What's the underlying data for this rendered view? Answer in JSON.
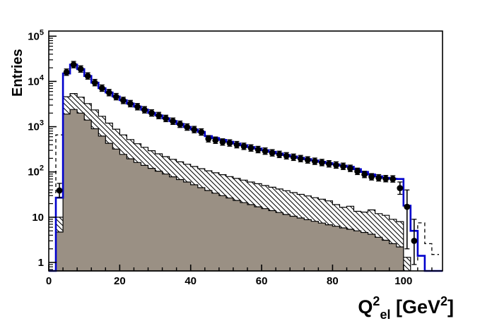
{
  "figure": {
    "background": "#ffffff"
  },
  "colors": {
    "total_line": "#0000cc",
    "marker": "#000000",
    "gray_fill": "#9a9084",
    "outline": "#000000",
    "frame": "#000000"
  },
  "chart_data": {
    "type": "bar",
    "subtype": "log-histogram-with-points",
    "title": "",
    "xlabel": "Q^2_el [GeV^2]",
    "ylabel": "Entries",
    "xlabel_parts": [
      {
        "t": "Q",
        "style": "base"
      },
      {
        "t": "2",
        "style": "sup"
      },
      {
        "t": "el",
        "style": "sub"
      },
      {
        "t": " [GeV",
        "style": "base"
      },
      {
        "t": "2",
        "style": "sup"
      },
      {
        "t": "]",
        "style": "base"
      }
    ],
    "xlim": [
      0,
      111
    ],
    "ylim": [
      0.65,
      130000
    ],
    "yscale": "log",
    "grid": false,
    "legend": "none",
    "bin_width": 2,
    "x_major_ticks": [
      0,
      20,
      40,
      60,
      80,
      100
    ],
    "x_major_tick_labels": [
      "0",
      "20",
      "40",
      "60",
      "80",
      "100"
    ],
    "x_minor_step": 4,
    "y_decade_ticks": [
      1,
      10,
      100,
      1000,
      10000,
      100000
    ],
    "series": [
      {
        "name": "dashed-histogram",
        "type": "step-line-dashed",
        "color": "#000000",
        "segments": [
          {
            "bins": [
              [
                0,
                35
              ],
              [
                2,
                660
              ],
              [
                4,
                47
              ]
            ],
            "end": 4.6
          },
          {
            "rise_from": 1.1,
            "bins": [
              [
                104,
                7.5
              ],
              [
                106,
                2.6
              ],
              [
                108,
                1.5
              ]
            ],
            "end": 110
          }
        ]
      },
      {
        "name": "hatched-histogram",
        "type": "step-fill",
        "fill": "hatch-diagonal",
        "color": "#000000",
        "end": 102,
        "bins": [
          [
            2,
            10
          ],
          [
            4,
            4600
          ],
          [
            6,
            5400
          ],
          [
            8,
            4500
          ],
          [
            10,
            3250
          ],
          [
            12,
            2350
          ],
          [
            14,
            1700
          ],
          [
            16,
            1200
          ],
          [
            18,
            880
          ],
          [
            20,
            660
          ],
          [
            22,
            520
          ],
          [
            24,
            420
          ],
          [
            26,
            350
          ],
          [
            28,
            295
          ],
          [
            30,
            252
          ],
          [
            32,
            218
          ],
          [
            34,
            190
          ],
          [
            36,
            167
          ],
          [
            38,
            148
          ],
          [
            40,
            132
          ],
          [
            42,
            118
          ],
          [
            44,
            106
          ],
          [
            46,
            96
          ],
          [
            48,
            87
          ],
          [
            50,
            79
          ],
          [
            52,
            72
          ],
          [
            54,
            66
          ],
          [
            56,
            60
          ],
          [
            58,
            55
          ],
          [
            60,
            50
          ],
          [
            62,
            46
          ],
          [
            64,
            42
          ],
          [
            66,
            38.5
          ],
          [
            68,
            35
          ],
          [
            70,
            32
          ],
          [
            72,
            29.5
          ],
          [
            74,
            27
          ],
          [
            76,
            25
          ],
          [
            78,
            23
          ],
          [
            80,
            19
          ],
          [
            82,
            16.5
          ],
          [
            84,
            17.5
          ],
          [
            86,
            13.5
          ],
          [
            88,
            13
          ],
          [
            90,
            14.5
          ],
          [
            92,
            12
          ],
          [
            94,
            11
          ],
          [
            96,
            9
          ],
          [
            98,
            8
          ],
          [
            100,
            1.3
          ]
        ]
      },
      {
        "name": "gray-histogram",
        "type": "step-fill",
        "fill": "#9a9084",
        "color": "#000000",
        "end": 100,
        "bins": [
          [
            2,
            4.7
          ],
          [
            4,
            1900
          ],
          [
            6,
            2400
          ],
          [
            8,
            2000
          ],
          [
            10,
            1400
          ],
          [
            12,
            900
          ],
          [
            14,
            620
          ],
          [
            16,
            430
          ],
          [
            18,
            320
          ],
          [
            20,
            245
          ],
          [
            22,
            195
          ],
          [
            24,
            162
          ],
          [
            26,
            140
          ],
          [
            28,
            120
          ],
          [
            30,
            104
          ],
          [
            32,
            90
          ],
          [
            34,
            78
          ],
          [
            36,
            68
          ],
          [
            38,
            60
          ],
          [
            40,
            52
          ],
          [
            42,
            45
          ],
          [
            44,
            39
          ],
          [
            46,
            34
          ],
          [
            48,
            30
          ],
          [
            50,
            26.5
          ],
          [
            52,
            23.5
          ],
          [
            54,
            21
          ],
          [
            56,
            19
          ],
          [
            58,
            17
          ],
          [
            60,
            15.5
          ],
          [
            62,
            14
          ],
          [
            64,
            12.7
          ],
          [
            66,
            11.5
          ],
          [
            68,
            10.5
          ],
          [
            70,
            9.6
          ],
          [
            72,
            8.8
          ],
          [
            74,
            8.1
          ],
          [
            76,
            7.4
          ],
          [
            78,
            6.8
          ],
          [
            80,
            6.3
          ],
          [
            82,
            5.8
          ],
          [
            84,
            5.4
          ],
          [
            86,
            5.0
          ],
          [
            88,
            4.6
          ],
          [
            90,
            4.2
          ],
          [
            92,
            3.6
          ],
          [
            94,
            3.1
          ],
          [
            96,
            2.6
          ],
          [
            98,
            2.2
          ]
        ]
      },
      {
        "name": "total-mc-line",
        "type": "step-line",
        "color": "#0000cc",
        "end": 111,
        "bins": [
          [
            0,
            0
          ],
          [
            2,
            27
          ],
          [
            4,
            15000
          ],
          [
            6,
            23500
          ],
          [
            8,
            18800
          ],
          [
            10,
            13200
          ],
          [
            12,
            9400
          ],
          [
            14,
            7100
          ],
          [
            16,
            5700
          ],
          [
            18,
            4650
          ],
          [
            20,
            3850
          ],
          [
            22,
            3250
          ],
          [
            24,
            2780
          ],
          [
            26,
            2380
          ],
          [
            28,
            2030
          ],
          [
            30,
            1780
          ],
          [
            32,
            1530
          ],
          [
            34,
            1330
          ],
          [
            36,
            1150
          ],
          [
            38,
            990
          ],
          [
            40,
            870
          ],
          [
            42,
            770
          ],
          [
            44,
            620
          ],
          [
            46,
            560
          ],
          [
            48,
            510
          ],
          [
            50,
            465
          ],
          [
            52,
            425
          ],
          [
            54,
            390
          ],
          [
            56,
            355
          ],
          [
            58,
            328
          ],
          [
            60,
            302
          ],
          [
            62,
            278
          ],
          [
            64,
            256
          ],
          [
            66,
            237
          ],
          [
            68,
            220
          ],
          [
            70,
            205
          ],
          [
            72,
            192
          ],
          [
            74,
            180
          ],
          [
            76,
            168
          ],
          [
            78,
            157
          ],
          [
            80,
            147
          ],
          [
            82,
            138
          ],
          [
            84,
            130
          ],
          [
            86,
            115
          ],
          [
            88,
            100
          ],
          [
            90,
            88
          ],
          [
            92,
            80
          ],
          [
            94,
            74
          ],
          [
            96,
            71
          ],
          [
            98,
            70
          ],
          [
            100,
            18
          ],
          [
            102,
            5
          ],
          [
            104,
            1.4
          ],
          [
            106,
            0
          ]
        ]
      },
      {
        "name": "data-points",
        "type": "scatter",
        "marker": "filled-circle",
        "color": "#000000",
        "points": [
          [
            3,
            39,
            27,
            56
          ],
          [
            5,
            16000
          ],
          [
            7,
            23500
          ],
          [
            9,
            18800
          ],
          [
            11,
            13200
          ],
          [
            13,
            9400
          ],
          [
            15,
            7100
          ],
          [
            17,
            5650
          ],
          [
            19,
            4600
          ],
          [
            21,
            3800
          ],
          [
            23,
            3230
          ],
          [
            25,
            2760
          ],
          [
            27,
            2360
          ],
          [
            29,
            2010
          ],
          [
            31,
            1760
          ],
          [
            33,
            1520
          ],
          [
            35,
            1320
          ],
          [
            37,
            1130
          ],
          [
            39,
            980
          ],
          [
            41,
            862
          ],
          [
            43,
            762
          ],
          [
            45,
            540
          ],
          [
            47,
            502
          ],
          [
            49,
            458
          ],
          [
            51,
            436
          ],
          [
            53,
            400
          ],
          [
            55,
            368
          ],
          [
            57,
            338
          ],
          [
            59,
            312
          ],
          [
            61,
            288
          ],
          [
            63,
            264
          ],
          [
            65,
            244
          ],
          [
            67,
            227
          ],
          [
            69,
            211
          ],
          [
            71,
            197
          ],
          [
            73,
            184
          ],
          [
            75,
            172
          ],
          [
            77,
            161
          ],
          [
            79,
            151
          ],
          [
            81,
            142
          ],
          [
            83,
            133
          ],
          [
            85,
            120
          ],
          [
            87,
            103
          ],
          [
            89,
            88
          ],
          [
            91,
            78
          ],
          [
            93,
            74
          ],
          [
            95,
            71
          ],
          [
            97,
            70
          ],
          [
            99,
            44,
            32,
            60
          ],
          [
            101,
            17,
            2,
            40
          ],
          [
            103,
            3,
            0.9,
            9
          ]
        ]
      }
    ]
  }
}
